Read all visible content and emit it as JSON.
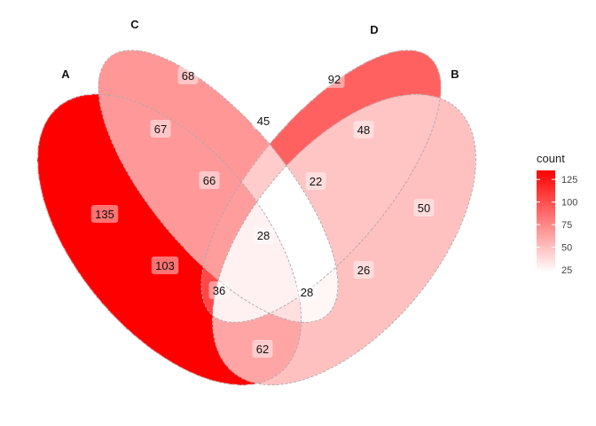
{
  "sets": [
    {
      "key": "A",
      "label": "A"
    },
    {
      "key": "B",
      "label": "B"
    },
    {
      "key": "C",
      "label": "C"
    },
    {
      "key": "D",
      "label": "D"
    }
  ],
  "regions": [
    {
      "sets": "A",
      "count": 135
    },
    {
      "sets": "B",
      "count": 50
    },
    {
      "sets": "C",
      "count": 68
    },
    {
      "sets": "D",
      "count": 92
    },
    {
      "sets": "AC",
      "count": 67
    },
    {
      "sets": "CD",
      "count": 45
    },
    {
      "sets": "BD",
      "count": 48
    },
    {
      "sets": "ACD",
      "count": 66
    },
    {
      "sets": "BCD",
      "count": 22
    },
    {
      "sets": "ABCD",
      "count": 28
    },
    {
      "sets": "BD_C",
      "count": 26
    },
    {
      "sets": "AC_B",
      "count": 103
    },
    {
      "sets": "AB",
      "count": 62
    },
    {
      "sets": "ABC",
      "count": 36
    },
    {
      "sets": "ABD",
      "count": 28
    }
  ],
  "legend": {
    "title": "count",
    "ticks": [
      125,
      100,
      75,
      50,
      25
    ],
    "min": 22,
    "max": 135
  },
  "colors": {
    "low": "#ffffff",
    "high": "#ff0000",
    "outline": "#a9a9a9"
  }
}
